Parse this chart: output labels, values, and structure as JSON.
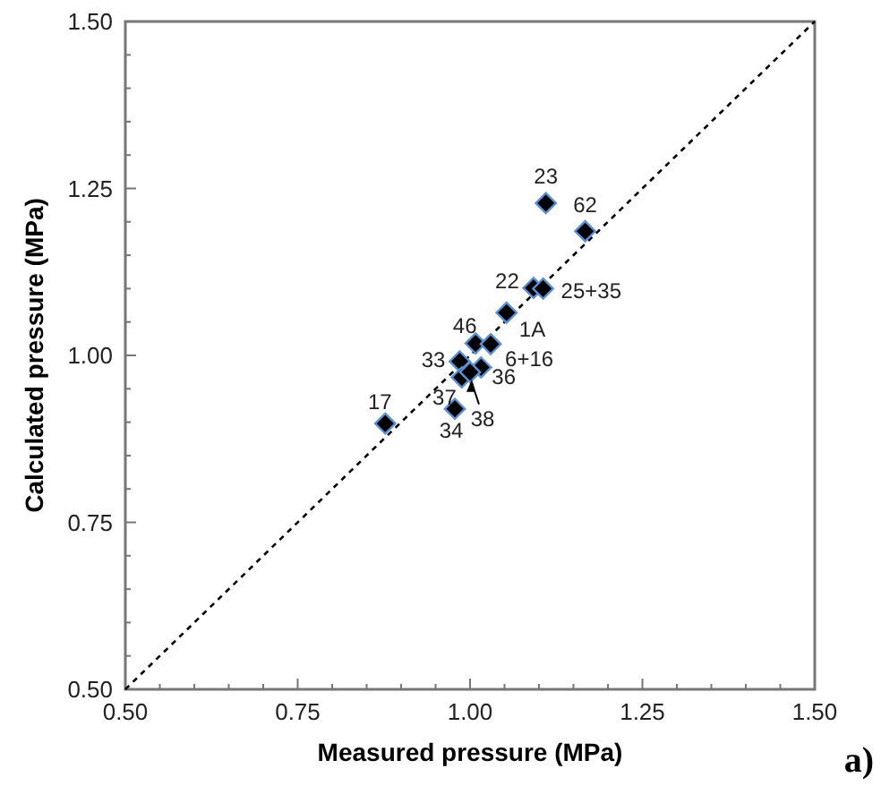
{
  "chart_data": {
    "type": "scatter",
    "xlabel": "Measured pressure (MPa)",
    "ylabel": "Calculated pressure (MPa)",
    "xlim": [
      0.5,
      1.5
    ],
    "ylim": [
      0.5,
      1.5
    ],
    "xticks": [
      {
        "value": 0.5,
        "label": "0.50"
      },
      {
        "value": 0.55,
        "label": null
      },
      {
        "value": 0.6,
        "label": null
      },
      {
        "value": 0.65,
        "label": null
      },
      {
        "value": 0.7,
        "label": null
      },
      0.75,
      {
        "value": 0.8,
        "label": null
      },
      {
        "value": 0.85,
        "label": null
      },
      {
        "value": 0.9,
        "label": null
      },
      {
        "value": 0.95,
        "label": null
      },
      {
        "value": 1.0,
        "label": "1.00"
      },
      {
        "value": 1.05,
        "label": null
      },
      {
        "value": 1.1,
        "label": null
      },
      {
        "value": 1.15,
        "label": null
      },
      {
        "value": 1.2,
        "label": null
      },
      1.25,
      {
        "value": 1.3,
        "label": null
      },
      {
        "value": 1.35,
        "label": null
      },
      {
        "value": 1.4,
        "label": null
      },
      {
        "value": 1.45,
        "label": null
      },
      {
        "value": 1.5,
        "label": "1.50"
      }
    ],
    "yticks": [
      {
        "value": 0.5,
        "label": "0.50"
      },
      {
        "value": 0.55,
        "label": null
      },
      {
        "value": 0.6,
        "label": null
      },
      {
        "value": 0.65,
        "label": null
      },
      {
        "value": 0.7,
        "label": null
      },
      0.75,
      {
        "value": 0.8,
        "label": null
      },
      {
        "value": 0.85,
        "label": null
      },
      {
        "value": 0.9,
        "label": null
      },
      {
        "value": 0.95,
        "label": null
      },
      {
        "value": 1.0,
        "label": "1.00"
      },
      {
        "value": 1.05,
        "label": null
      },
      {
        "value": 1.1,
        "label": null
      },
      {
        "value": 1.15,
        "label": null
      },
      {
        "value": 1.2,
        "label": null
      },
      1.25,
      {
        "value": 1.3,
        "label": null
      },
      {
        "value": 1.35,
        "label": null
      },
      {
        "value": 1.4,
        "label": null
      },
      {
        "value": 1.45,
        "label": null
      },
      {
        "value": 1.5,
        "label": "1.50"
      }
    ],
    "grid": false,
    "marker": "diamond",
    "series": [
      {
        "type": "line",
        "color": "#000000",
        "line_style": "dashed",
        "marker": "none",
        "x": [
          0.5,
          1.5
        ],
        "values": [
          0.5,
          1.5
        ]
      },
      {
        "type": "scatter",
        "color": "#000000",
        "x": [
          1.11,
          1.167,
          1.092,
          1.106,
          1.053,
          1.008,
          1.03,
          0.985,
          1.016,
          0.988,
          1.0,
          0.978,
          0.877
        ],
        "values": [
          1.228,
          1.186,
          1.101,
          1.1,
          1.064,
          1.018,
          1.017,
          0.991,
          0.982,
          0.967,
          0.975,
          0.92,
          0.898
        ]
      }
    ],
    "annotations": [
      {
        "text": "23",
        "x": 1.11,
        "y": 1.228
      },
      {
        "text": "62",
        "x": 1.167,
        "y": 1.186
      },
      {
        "text": "22",
        "x": 1.092,
        "y": 1.101
      },
      {
        "text": "25+35",
        "x": 1.106,
        "y": 1.1
      },
      {
        "text": "1A",
        "x": 1.053,
        "y": 1.064
      },
      {
        "text": "46",
        "x": 1.008,
        "y": 1.018
      },
      {
        "text": "6+16",
        "x": 1.03,
        "y": 1.017
      },
      {
        "text": "33",
        "x": 0.985,
        "y": 0.991
      },
      {
        "text": "36",
        "x": 1.016,
        "y": 0.982
      },
      {
        "text": "37",
        "x": 0.988,
        "y": 0.967
      },
      {
        "text": "38",
        "x": 1.0,
        "y": 0.975
      },
      {
        "text": "34",
        "x": 0.978,
        "y": 0.92
      },
      {
        "text": "17",
        "x": 0.877,
        "y": 0.898
      },
      "a)"
    ]
  }
}
